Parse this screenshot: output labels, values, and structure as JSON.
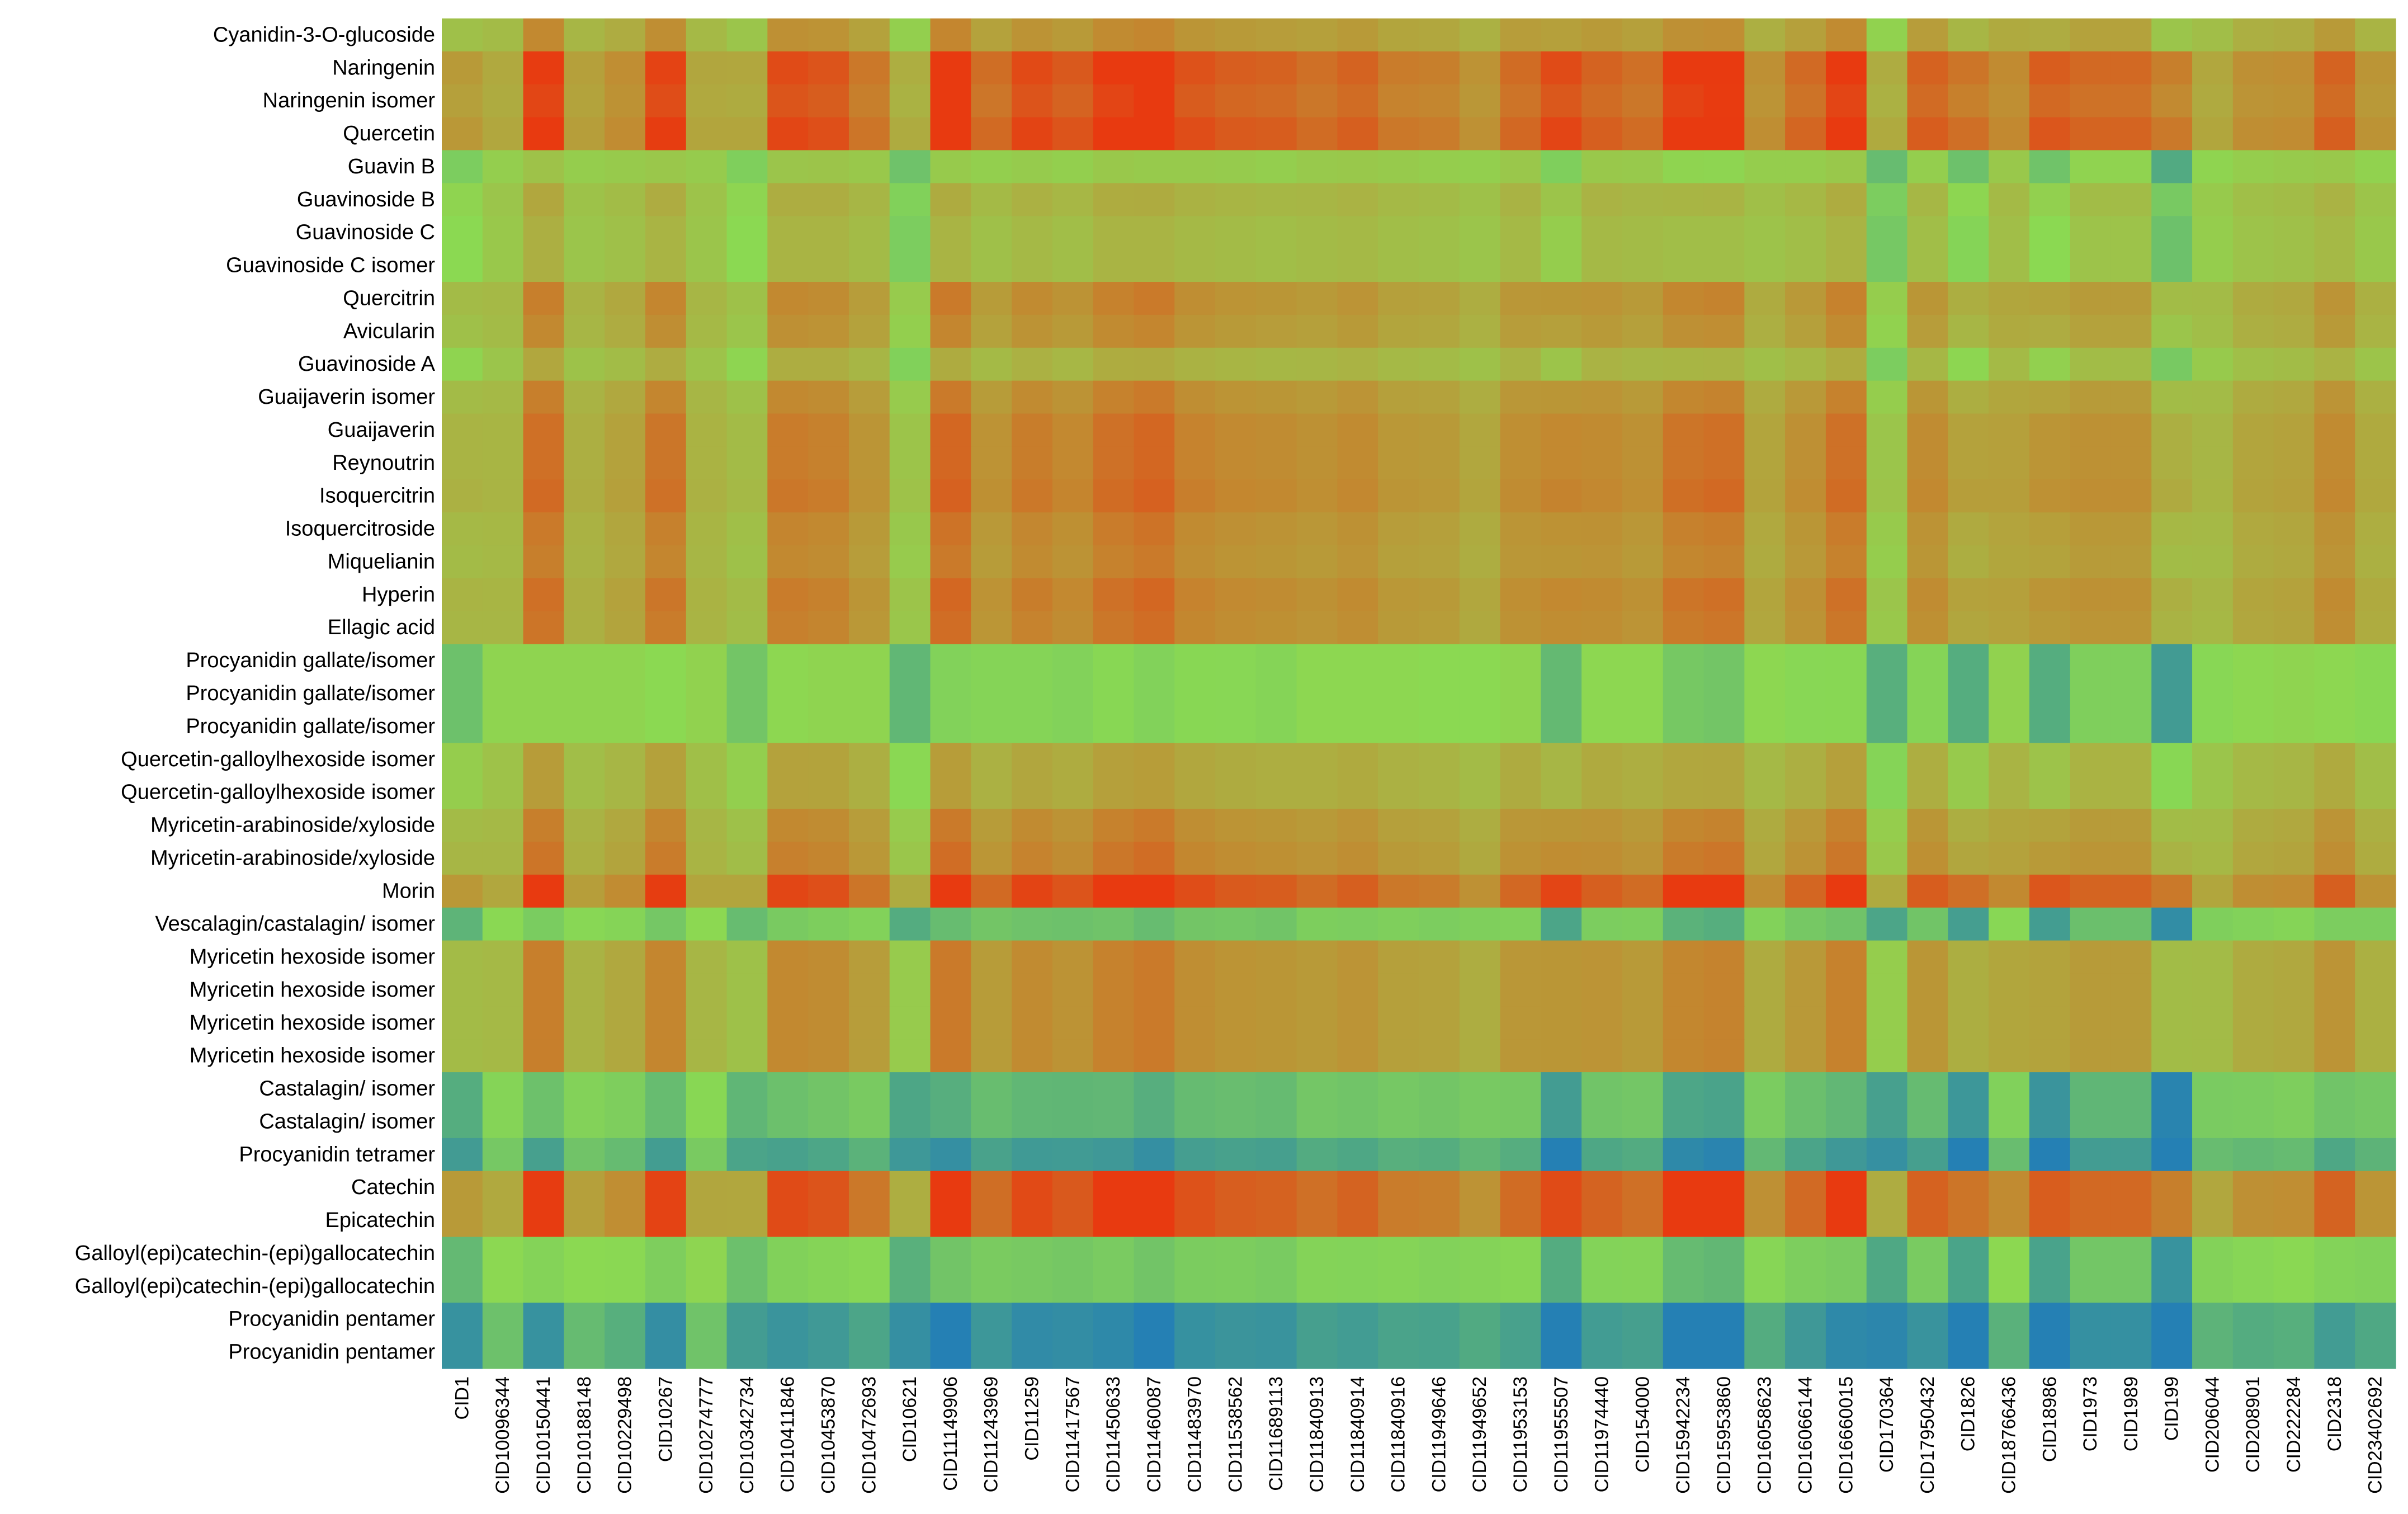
{
  "chart_data": {
    "type": "heatmap",
    "title": "",
    "xlabel": "",
    "ylabel": "",
    "grid": false,
    "legend": "none",
    "rows": [
      "Cyanidin-3-O-glucoside",
      "Naringenin",
      "Naringenin isomer",
      "Quercetin",
      "Guavin B",
      "Guavinoside B",
      "Guavinoside C",
      "Guavinoside C isomer",
      "Quercitrin",
      "Avicularin",
      "Guavinoside A",
      "Guaijaverin isomer",
      "Guaijaverin",
      "Reynoutrin",
      "Isoquercitrin",
      "Isoquercitroside",
      "Miquelianin",
      "Hyperin",
      "Ellagic acid",
      "Procyanidin gallate/isomer",
      "Procyanidin gallate/isomer",
      "Procyanidin gallate/isomer",
      "Quercetin-galloylhexoside isomer",
      "Quercetin-galloylhexoside isomer",
      "Myricetin-arabinoside/xyloside",
      "Myricetin-arabinoside/xyloside",
      "Morin",
      "Vescalagin/castalagin/ isomer",
      "Myricetin hexoside isomer",
      "Myricetin hexoside isomer",
      "Myricetin hexoside isomer",
      "Myricetin hexoside isomer",
      "Castalagin/ isomer",
      "Castalagin/ isomer",
      "Procyanidin tetramer",
      "Catechin",
      "Epicatechin",
      "Galloyl(epi)catechin-(epi)gallocatechin",
      "Galloyl(epi)catechin-(epi)gallocatechin",
      "Procyanidin pentamer",
      "Procyanidin pentamer"
    ],
    "columns": [
      "CID1",
      "CID10096344",
      "CID10150441",
      "CID10188148",
      "CID10229498",
      "CID10267",
      "CID10274777",
      "CID10342734",
      "CID10411846",
      "CID10453870",
      "CID10472693",
      "CID10621",
      "CID11149906",
      "CID11243969",
      "CID11259",
      "CID11417567",
      "CID11450633",
      "CID11460087",
      "CID11483970",
      "CID11538562",
      "CID11689113",
      "CID11840913",
      "CID11840914",
      "CID11840916",
      "CID11949646",
      "CID11949652",
      "CID11953153",
      "CID11955507",
      "CID11974440",
      "CID154000",
      "CID15942234",
      "CID15953860",
      "CID16058623",
      "CID16066144",
      "CID16660015",
      "CID170364",
      "CID17950432",
      "CID1826",
      "CID18766436",
      "CID18986",
      "CID1973",
      "CID1989",
      "CID199",
      "CID206044",
      "CID208901",
      "CID222284",
      "CID2318",
      "CID23402692"
    ],
    "color_scale": {
      "stops": [
        {
          "value": 0.0,
          "color": "#2580b4"
        },
        {
          "value": 0.25,
          "color": "#4fa884"
        },
        {
          "value": 0.45,
          "color": "#8bd952"
        },
        {
          "value": 0.6,
          "color": "#a9b444"
        },
        {
          "value": 0.78,
          "color": "#c4862f"
        },
        {
          "value": 1.0,
          "color": "#e83a10"
        }
      ]
    },
    "column_effects": [
      -0.05,
      0.02,
      0.12,
      0.03,
      0.05,
      0.1,
      0.03,
      -0.05,
      0.1,
      0.1,
      0.07,
      -0.1,
      0.1,
      0.05,
      0.08,
      0.06,
      0.1,
      0.1,
      0.08,
      0.07,
      0.06,
      0.07,
      0.08,
      0.06,
      0.05,
      0.03,
      0.08,
      0.0,
      0.08,
      0.07,
      0.06,
      0.06,
      0.04,
      0.06,
      0.1,
      -0.12,
      0.06,
      -0.07,
      0.06,
      -0.05,
      0.04,
      0.04,
      -0.15,
      0.0,
      0.04,
      0.05,
      0.08,
      0.02
    ],
    "row_means": [
      0.6,
      0.75,
      0.73,
      0.76,
      0.45,
      0.52,
      0.5,
      0.5,
      0.62,
      0.6,
      0.52,
      0.62,
      0.65,
      0.65,
      0.66,
      0.63,
      0.62,
      0.65,
      0.64,
      0.4,
      0.4,
      0.4,
      0.55,
      0.55,
      0.62,
      0.64,
      0.76,
      0.35,
      0.62,
      0.62,
      0.62,
      0.62,
      0.32,
      0.32,
      0.22,
      0.75,
      0.75,
      0.37,
      0.37,
      0.16,
      0.16
    ],
    "column_contrast": [
      1.0,
      0.5,
      1.5,
      0.6,
      0.8,
      1.5,
      0.5,
      0.8,
      1.4,
      1.3,
      1.0,
      0.9,
      1.8,
      1.2,
      1.5,
      1.4,
      1.6,
      1.8,
      1.4,
      1.3,
      1.3,
      1.1,
      1.2,
      1.0,
      1.0,
      0.8,
      1.1,
      1.8,
      1.2,
      1.1,
      1.8,
      1.9,
      0.8,
      1.2,
      1.6,
      1.0,
      1.3,
      1.6,
      0.8,
      1.8,
      1.3,
      1.3,
      1.8,
      0.6,
      0.8,
      0.8,
      1.2,
      0.8
    ]
  }
}
